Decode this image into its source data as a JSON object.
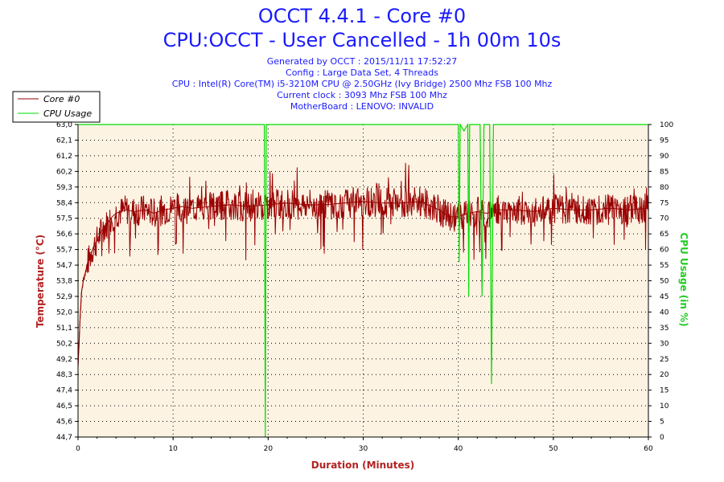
{
  "header": {
    "title_line1": "OCCT 4.4.1 - Core #0",
    "title_line2": "CPU:OCCT - User Cancelled - 1h 00m 10s",
    "generated": "Generated by OCCT : 2015/11/11 17:52:27",
    "config": "Config : Large Data Set, 4 Threads",
    "cpu": "CPU : Intel(R) Core(TM) i5-3210M CPU @ 2.50GHz (Ivy Bridge) 2500 Mhz FSB 100 Mhz",
    "clock": "Current clock : 3093 Mhz FSB 100 Mhz",
    "motherboard": "MotherBoard : LENOVO: INVALID"
  },
  "colors": {
    "temperature": "#990000",
    "cpu_usage": "#00dd00",
    "plot_bg": "#fdf3e3",
    "title_blue": "#1a1aff",
    "temp_axis_title": "#b22222",
    "usage_axis_title": "#22cc22"
  },
  "chart_data": {
    "type": "line",
    "xlabel": "Duration (Minutes)",
    "ylabel": "Temperature (°C)",
    "y2label": "CPU Usage (in %)",
    "xlim": [
      0,
      60
    ],
    "ylim": [
      44.7,
      63.0
    ],
    "y2lim": [
      0,
      100
    ],
    "x_ticks": [
      "0",
      "10",
      "20",
      "30",
      "40",
      "50",
      "60"
    ],
    "y_ticks": [
      "44,7",
      "45,6",
      "46,5",
      "47,4",
      "48,3",
      "49,2",
      "50,2",
      "51,1",
      "52,0",
      "52,9",
      "53,8",
      "54,7",
      "55,7",
      "56,6",
      "57,5",
      "58,4",
      "59,3",
      "60,2",
      "61,2",
      "62,1",
      "63,0"
    ],
    "y2_ticks": [
      "0",
      "5",
      "10",
      "15",
      "20",
      "25",
      "30",
      "35",
      "40",
      "45",
      "50",
      "55",
      "60",
      "65",
      "70",
      "75",
      "80",
      "85",
      "90",
      "95",
      "100"
    ],
    "grid": true,
    "legend_position": "top-left",
    "series": [
      {
        "name": "Core #0",
        "axis": "left",
        "x": [
          0,
          0.1,
          0.2,
          0.3,
          0.4,
          0.6,
          0.8,
          1.0,
          1.3,
          1.6,
          2.0,
          2.4,
          2.8,
          3.2,
          3.6,
          4.0,
          4.5,
          5.0,
          6.0,
          7.0,
          8.0,
          9.0,
          10.0,
          11.0,
          12.0,
          14.0,
          16.0,
          18.0,
          20.0,
          22.0,
          24.0,
          26.0,
          28.0,
          30.0,
          32.0,
          34.0,
          36.0,
          38.0,
          39.0,
          40.0,
          41.0,
          42.0,
          43.0,
          44.0,
          46.0,
          48.0,
          50.0,
          52.0,
          54.0,
          56.0,
          58.0,
          60.0
        ],
        "y": [
          48.8,
          50.2,
          51.5,
          52.5,
          53.3,
          54.0,
          54.4,
          54.9,
          55.3,
          55.8,
          56.2,
          56.7,
          57.0,
          57.3,
          57.6,
          57.8,
          57.9,
          58.0,
          57.9,
          58.0,
          57.8,
          58.0,
          58.1,
          58.2,
          58.1,
          58.2,
          58.3,
          58.2,
          58.3,
          58.4,
          58.3,
          58.3,
          58.4,
          58.5,
          58.4,
          58.4,
          58.5,
          58.0,
          57.6,
          57.6,
          57.8,
          57.9,
          57.8,
          58.0,
          58.0,
          57.9,
          58.1,
          58.0,
          58.0,
          58.1,
          58.0,
          58.1
        ]
      },
      {
        "name": "CPU Usage",
        "axis": "right",
        "x": [
          0,
          19.6,
          19.7,
          19.8,
          40.0,
          40.1,
          40.2,
          40.6,
          41.0,
          41.1,
          41.2,
          42.3,
          42.5,
          42.7,
          43.3,
          43.5,
          43.7,
          60.0
        ],
        "y": [
          100,
          100,
          0,
          100,
          100,
          56,
          100,
          98,
          100,
          45,
          100,
          100,
          45,
          100,
          100,
          17,
          100,
          100
        ]
      }
    ]
  }
}
